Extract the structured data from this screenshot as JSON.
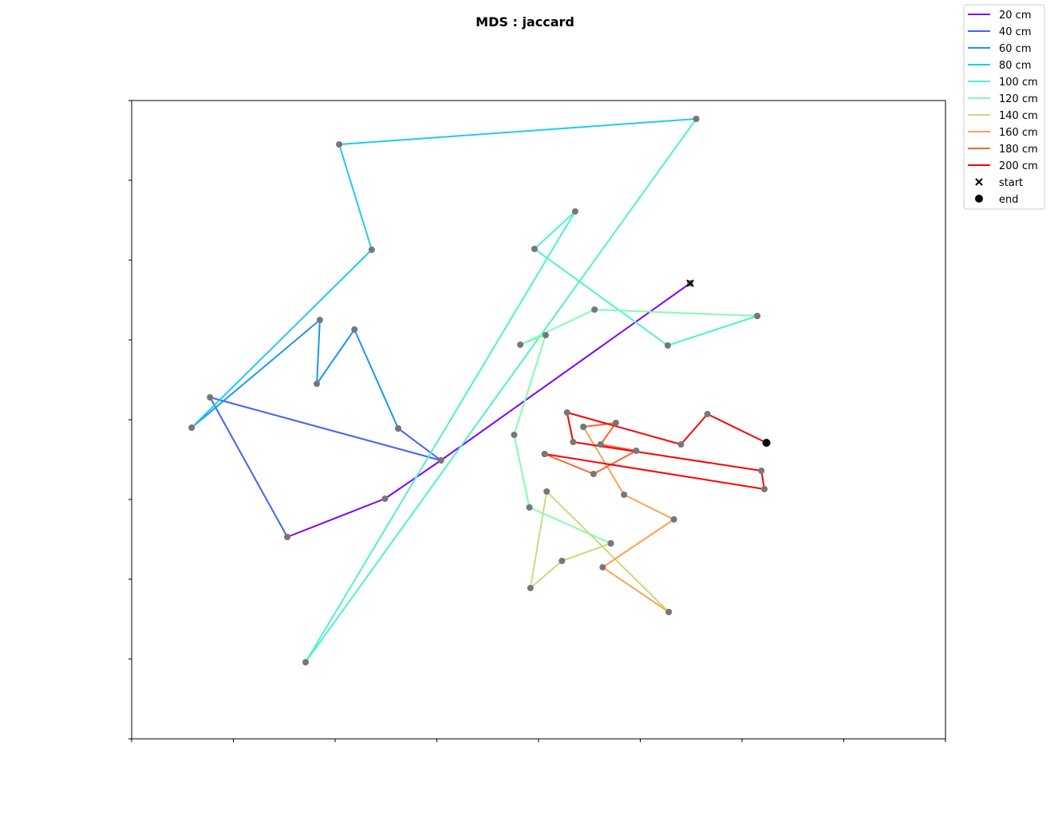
{
  "chart_data": {
    "type": "line",
    "title": "MDS : jaccard",
    "xlabel": "",
    "ylabel": "",
    "xlim": [
      0,
      8
    ],
    "ylim": [
      0,
      8
    ],
    "grid": false,
    "legend_position": "top-right outside",
    "tick_labels_visible": false,
    "point_color": "#777777",
    "series": [
      {
        "name": "20 cm",
        "color": "#7f00ff",
        "points": [
          [
            5.49,
            5.71
          ],
          [
            3.04,
            3.49
          ],
          [
            2.49,
            3.01
          ],
          [
            1.53,
            2.53
          ]
        ]
      },
      {
        "name": "40 cm",
        "color": "#4062fa",
        "points": [
          [
            1.53,
            2.53
          ],
          [
            0.77,
            4.28
          ],
          [
            3.04,
            3.49
          ],
          [
            2.62,
            3.89
          ]
        ]
      },
      {
        "name": "60 cm",
        "color": "#1996f3",
        "points": [
          [
            2.62,
            3.89
          ],
          [
            2.19,
            5.13
          ],
          [
            1.82,
            4.45
          ],
          [
            1.85,
            5.25
          ],
          [
            0.59,
            3.9
          ]
        ]
      },
      {
        "name": "80 cm",
        "color": "#1ccdea",
        "points": [
          [
            0.59,
            3.9
          ],
          [
            2.36,
            6.13
          ],
          [
            2.04,
            7.45
          ],
          [
            5.55,
            7.77
          ]
        ]
      },
      {
        "name": "100 cm",
        "color": "#4df3ce",
        "points": [
          [
            5.55,
            7.77
          ],
          [
            1.71,
            0.96
          ],
          [
            4.36,
            6.61
          ],
          [
            3.96,
            6.14
          ],
          [
            5.27,
            4.93
          ],
          [
            6.15,
            5.3
          ]
        ]
      },
      {
        "name": "120 cm",
        "color": "#81feb1",
        "points": [
          [
            6.15,
            5.3
          ],
          [
            4.55,
            5.38
          ],
          [
            3.82,
            4.94
          ],
          [
            4.07,
            5.06
          ],
          [
            3.76,
            3.81
          ],
          [
            3.91,
            2.9
          ],
          [
            4.71,
            2.45
          ]
        ]
      },
      {
        "name": "140 cm",
        "color": "#c7dc7a",
        "points": [
          [
            4.71,
            2.45
          ],
          [
            4.23,
            2.23
          ],
          [
            3.92,
            1.89
          ],
          [
            4.08,
            3.1
          ],
          [
            5.28,
            1.59
          ]
        ]
      },
      {
        "name": "160 cm",
        "color": "#ffa256",
        "points": [
          [
            5.28,
            1.59
          ],
          [
            4.63,
            2.15
          ],
          [
            5.33,
            2.75
          ],
          [
            4.84,
            3.06
          ],
          [
            4.44,
            3.91
          ]
        ]
      },
      {
        "name": "180 cm",
        "color": "#ff6230",
        "points": [
          [
            4.44,
            3.91
          ],
          [
            4.76,
            3.96
          ],
          [
            4.61,
            3.69
          ],
          [
            4.96,
            3.61
          ],
          [
            4.54,
            3.32
          ],
          [
            4.06,
            3.57
          ]
        ]
      },
      {
        "name": "200 cm",
        "color": "#ff0000",
        "points": [
          [
            4.06,
            3.57
          ],
          [
            6.22,
            3.13
          ],
          [
            6.19,
            3.36
          ],
          [
            4.34,
            3.72
          ],
          [
            4.28,
            4.09
          ],
          [
            5.4,
            3.69
          ],
          [
            5.66,
            4.07
          ],
          [
            6.24,
            3.71
          ]
        ]
      }
    ],
    "markers": [
      {
        "name": "start",
        "symbol": "x",
        "point": [
          5.49,
          5.71
        ]
      },
      {
        "name": "end",
        "symbol": "dot",
        "point": [
          6.24,
          3.71
        ]
      }
    ],
    "x_ticks": [
      0,
      1,
      2,
      3,
      4,
      5,
      6,
      7,
      8
    ],
    "y_ticks": [
      0,
      1,
      2,
      3,
      4,
      5,
      6,
      7,
      8
    ]
  }
}
